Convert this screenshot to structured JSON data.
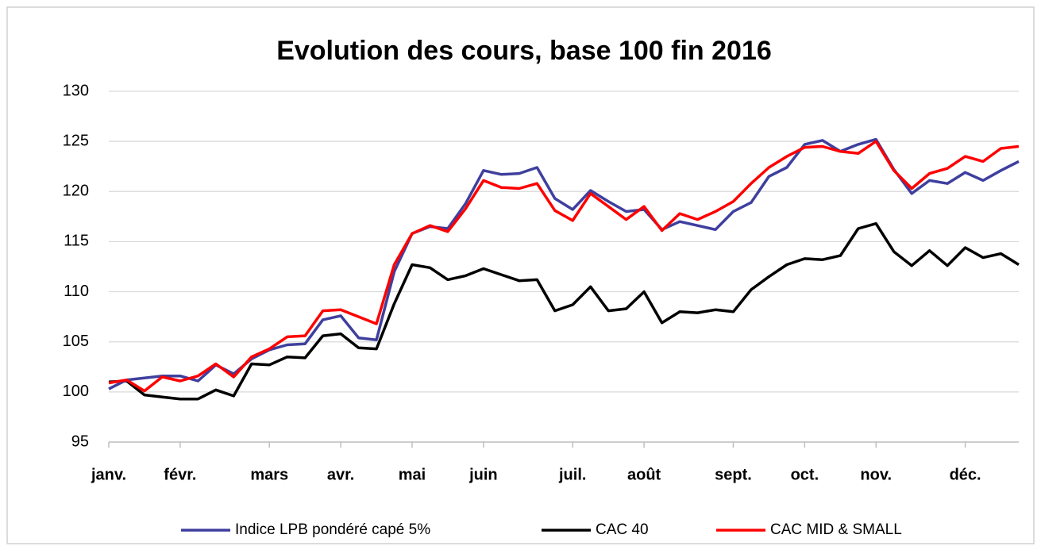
{
  "chart_data": {
    "type": "line",
    "title": "Evolution des cours, base 100 fin 2016",
    "categories": [
      "janv.",
      null,
      null,
      null,
      "févr.",
      null,
      null,
      null,
      null,
      "mars",
      null,
      null,
      null,
      "avr.",
      null,
      null,
      null,
      "mai",
      null,
      null,
      null,
      "juin",
      null,
      null,
      null,
      null,
      "juil.",
      null,
      null,
      null,
      "août",
      null,
      null,
      null,
      null,
      "sept.",
      null,
      null,
      null,
      "oct.",
      null,
      null,
      null,
      "nov.",
      null,
      null,
      null,
      null,
      "déc.",
      null,
      null,
      null
    ],
    "series": [
      {
        "name": "Indice LPB pondéré capé 5%",
        "color": "#3f3f9f",
        "values": [
          100.3,
          101.2,
          101.4,
          101.6,
          101.6,
          101.1,
          102.7,
          101.8,
          103.3,
          104.2,
          104.7,
          104.8,
          107.2,
          107.6,
          105.4,
          105.2,
          112.0,
          115.8,
          116.5,
          116.3,
          118.8,
          122.1,
          121.7,
          121.8,
          122.4,
          119.3,
          118.2,
          120.1,
          119.0,
          118.0,
          118.2,
          116.2,
          117.0,
          116.6,
          116.2,
          118.0,
          118.9,
          121.5,
          122.4,
          124.7,
          125.1,
          124.0,
          124.7,
          125.2,
          122.2,
          119.8,
          121.1,
          120.8,
          121.9,
          121.1,
          122.1,
          123.0
        ]
      },
      {
        "name": "CAC 40",
        "color": "#000000",
        "values": [
          101.0,
          101.1,
          99.7,
          99.5,
          99.3,
          99.3,
          100.2,
          99.6,
          102.8,
          102.7,
          103.5,
          103.4,
          105.6,
          105.8,
          104.4,
          104.3,
          108.8,
          112.7,
          112.4,
          111.2,
          111.6,
          112.3,
          111.7,
          111.1,
          111.2,
          108.1,
          108.7,
          110.5,
          108.1,
          108.3,
          110.0,
          106.9,
          108.0,
          107.9,
          108.2,
          108.0,
          110.2,
          111.5,
          112.7,
          113.3,
          113.2,
          113.6,
          116.3,
          116.8,
          114.0,
          112.6,
          114.1,
          112.6,
          114.4,
          113.4,
          113.8,
          112.7
        ]
      },
      {
        "name": "CAC MID & SMALL",
        "color": "#ff0000",
        "values": [
          100.9,
          101.2,
          100.1,
          101.5,
          101.1,
          101.6,
          102.8,
          101.5,
          103.5,
          104.3,
          105.5,
          105.6,
          108.1,
          108.2,
          107.5,
          106.8,
          112.7,
          115.8,
          116.6,
          116.0,
          118.3,
          121.1,
          120.4,
          120.3,
          120.8,
          118.1,
          117.1,
          119.8,
          118.5,
          117.2,
          118.5,
          116.1,
          117.8,
          117.2,
          118.0,
          119.0,
          120.8,
          122.4,
          123.5,
          124.4,
          124.5,
          124.0,
          123.8,
          125.0,
          122.1,
          120.3,
          121.8,
          122.3,
          123.5,
          123.0,
          124.3,
          124.5
        ]
      }
    ],
    "ylim": [
      95,
      130
    ],
    "yticks": [
      95,
      100,
      105,
      110,
      115,
      120,
      125,
      130
    ],
    "grid": true,
    "legend": "bottom"
  }
}
